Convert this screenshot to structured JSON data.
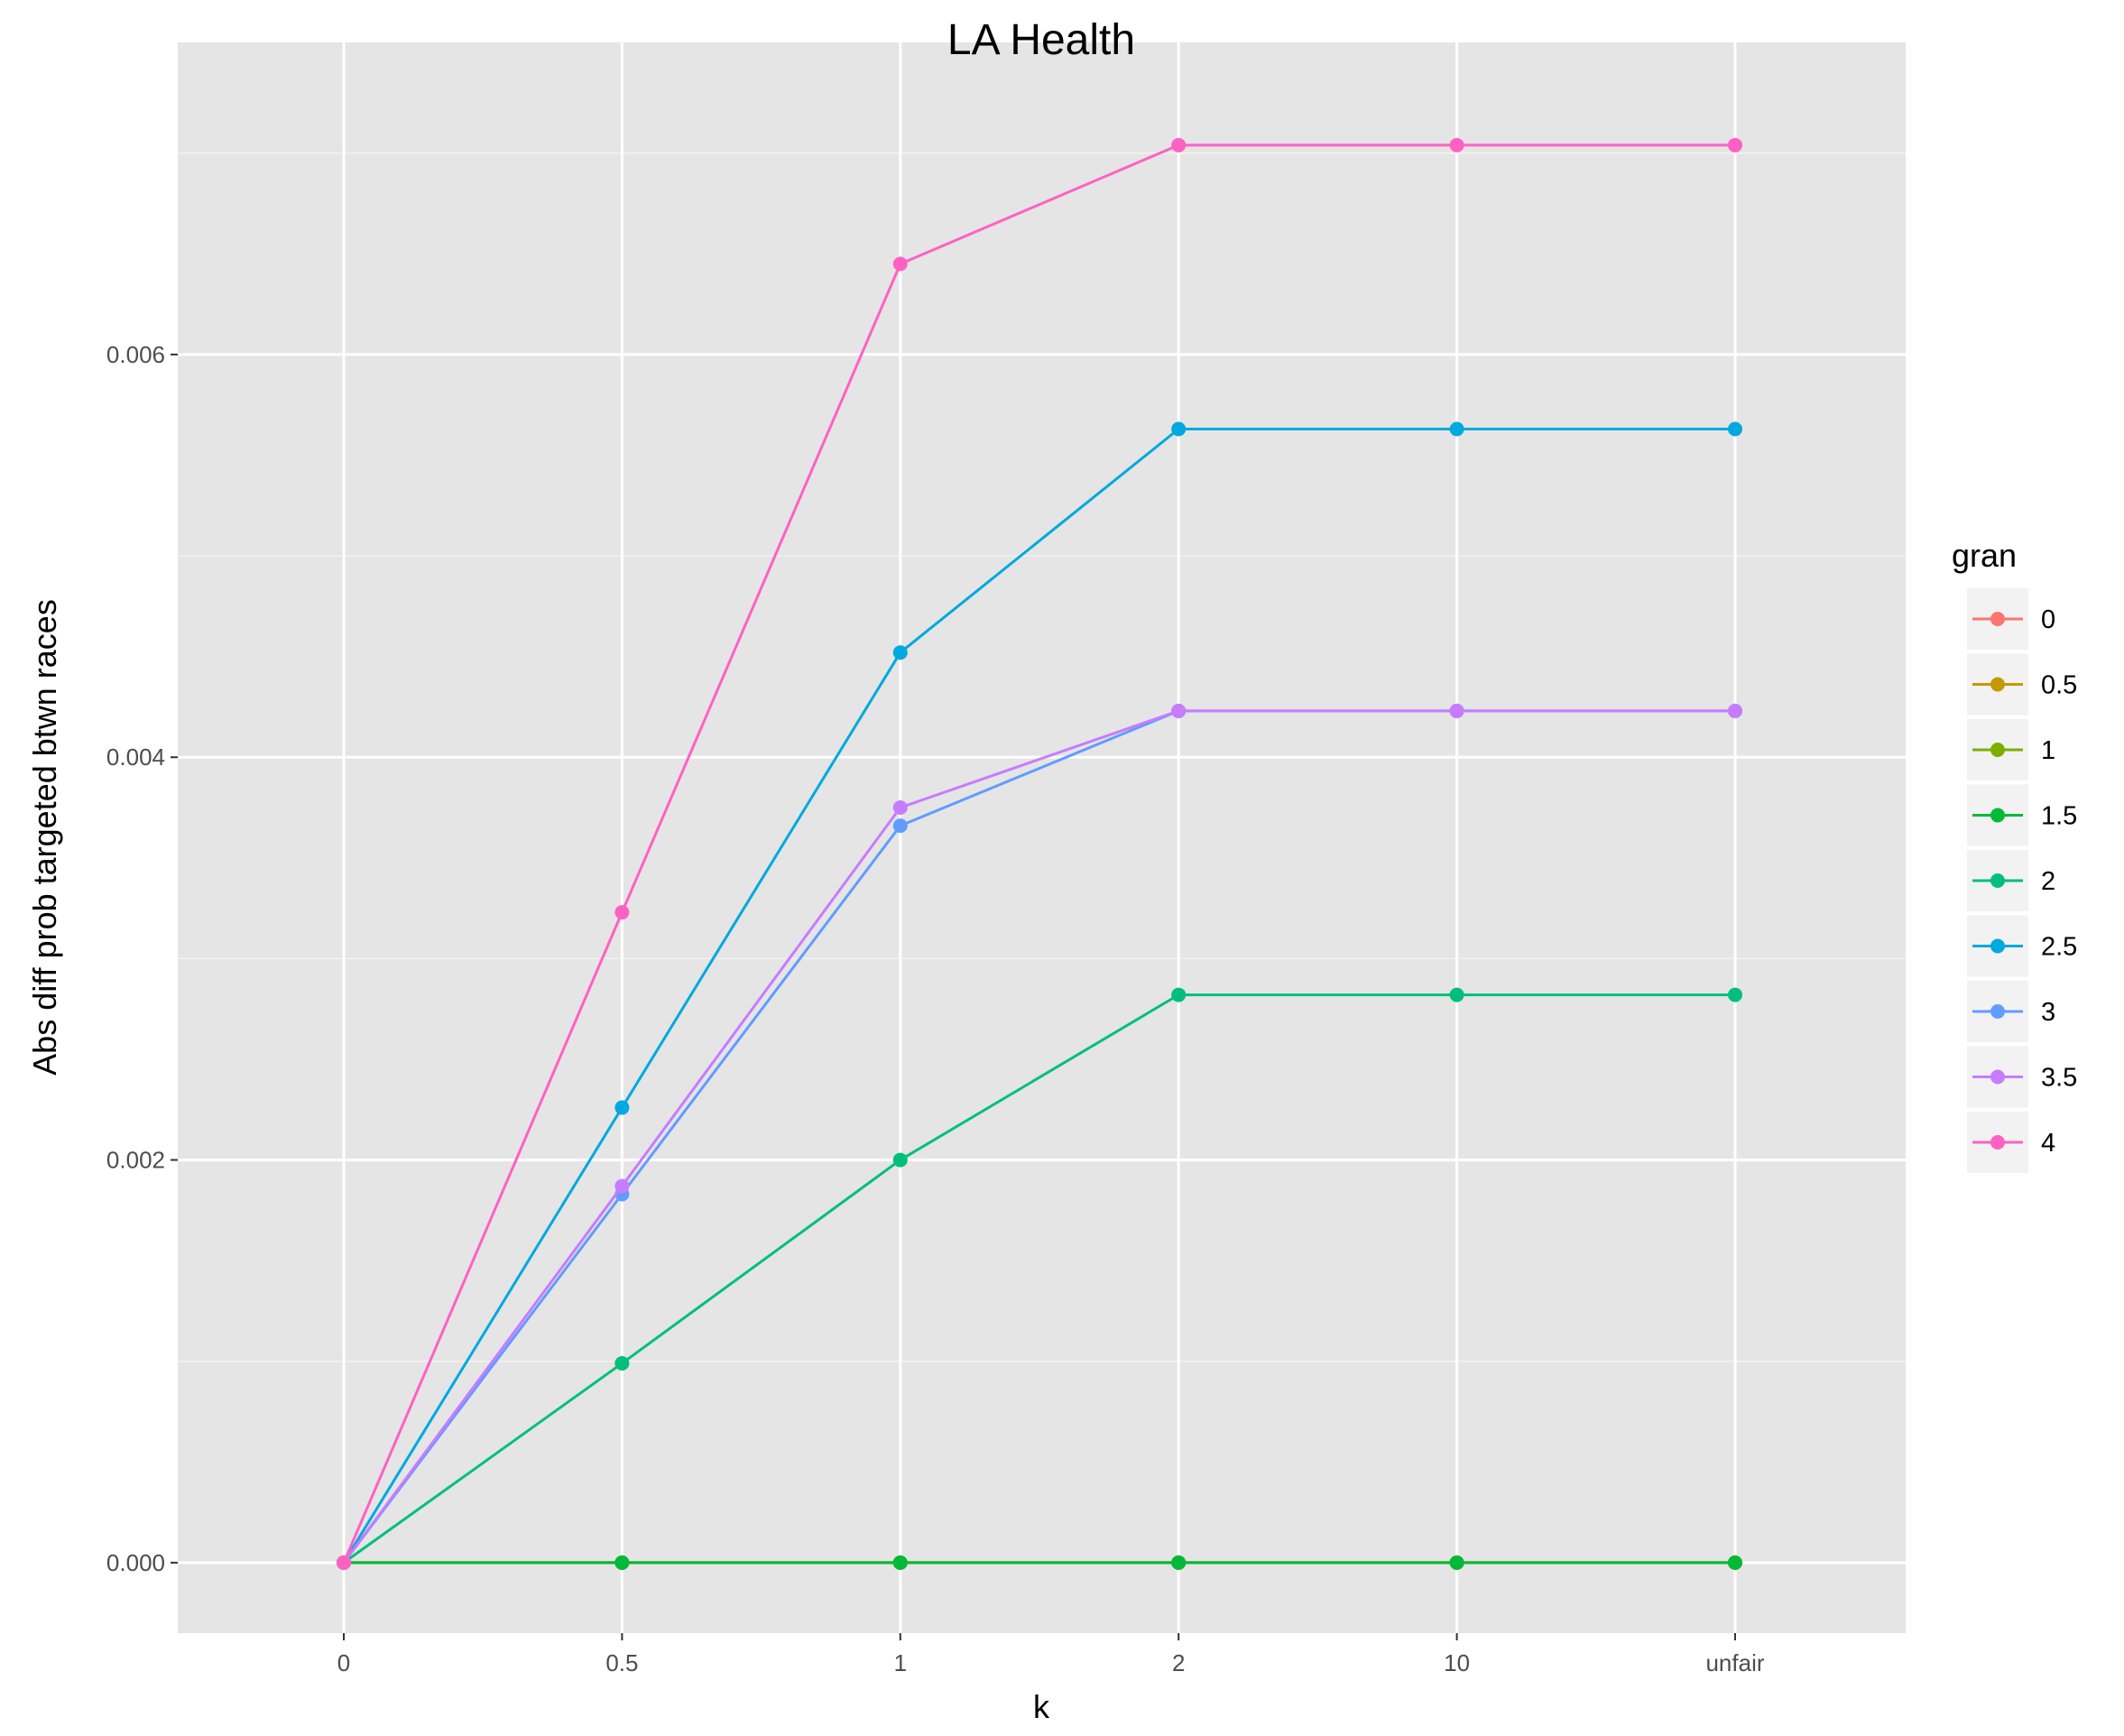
{
  "chart_data": {
    "type": "line",
    "title": "LA Health",
    "xlabel": "k",
    "ylabel": "Abs diff prob targeted btwn races",
    "categories": [
      "0",
      "0.5",
      "1",
      "2",
      "10",
      "unfair"
    ],
    "y_ticks": [
      "0.000",
      "0.002",
      "0.004",
      "0.006"
    ],
    "y_tick_values": [
      0,
      0.002,
      0.004,
      0.006
    ],
    "ylim": [
      -0.00035,
      0.00755
    ],
    "legend_title": "gran",
    "legend_position": "right",
    "grid": true,
    "series": [
      {
        "name": "0",
        "color": "#F8766D",
        "values": [
          0,
          0,
          0,
          0,
          0,
          0
        ]
      },
      {
        "name": "0.5",
        "color": "#C49A00",
        "values": [
          0,
          0,
          0,
          0,
          0,
          0
        ]
      },
      {
        "name": "1",
        "color": "#7CAE00",
        "values": [
          0,
          0,
          0,
          0,
          0,
          0
        ]
      },
      {
        "name": "1.5",
        "color": "#00BA38",
        "values": [
          0,
          0,
          0,
          0,
          0,
          0
        ]
      },
      {
        "name": "2",
        "color": "#00BF7D",
        "values": [
          0,
          0.00099,
          0.002,
          0.00282,
          0.00282,
          0.00282
        ]
      },
      {
        "name": "2.5",
        "color": "#00A9DE",
        "values": [
          0,
          0.00226,
          0.00452,
          0.00563,
          0.00563,
          0.00563
        ]
      },
      {
        "name": "3",
        "color": "#619CFF",
        "values": [
          0,
          0.00183,
          0.00366,
          0.00423,
          0.00423,
          0.00423
        ]
      },
      {
        "name": "3.5",
        "color": "#C77CFF",
        "values": [
          0,
          0.00187,
          0.00375,
          0.00423,
          0.00423,
          0.00423
        ]
      },
      {
        "name": "4",
        "color": "#FF61C3",
        "values": [
          0,
          0.00323,
          0.00645,
          0.00704,
          0.00704,
          0.00704
        ]
      }
    ]
  }
}
